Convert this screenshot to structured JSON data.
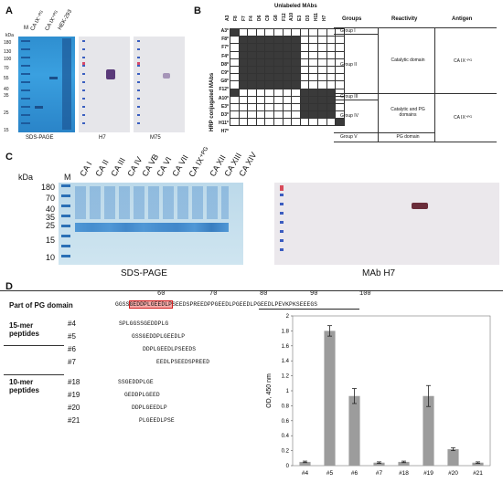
{
  "panels": {
    "A": "A",
    "B": "B",
    "C": "C",
    "D": "D"
  },
  "panelA": {
    "kda": "kDa",
    "m": "M",
    "lane_labels": [
      "CA IX⁻ᴾᴳ",
      "CA IX⁺ᴾᴳ",
      "HEK-293"
    ],
    "markers": [
      "180",
      "130",
      "100",
      "70",
      "55",
      "40",
      "35",
      "25",
      "15"
    ],
    "captions": [
      "SDS-PAGE",
      "H7",
      "M75"
    ]
  },
  "panelB": {
    "title": "Unlabeled MAbs",
    "columns": [
      "A3",
      "F8",
      "F7",
      "F4",
      "D6",
      "C9",
      "G8",
      "F12",
      "A10",
      "E3",
      "D3",
      "H11",
      "H7"
    ],
    "rows": [
      "A3*",
      "F8*",
      "F7*",
      "F4*",
      "D8*",
      "C9*",
      "G8*",
      "F12*",
      "A10*",
      "E3*",
      "D3*",
      "H11*",
      "H7*"
    ],
    "ylabel": "HRP conjugated MAbs",
    "headers": {
      "groups": "Groups",
      "reactivity": "Reactivity",
      "antigen": "Antigen"
    },
    "groups": [
      "Group I",
      "Group II",
      "Group III",
      "Group IV",
      "Group V"
    ],
    "reactivity": [
      "Catalytic domain",
      "Catalytic and PG domains",
      "PG domain"
    ],
    "antigen": [
      "CA IX⁻ᴾᴳ",
      "CA IX⁺ᴾᴳ"
    ]
  },
  "panelC": {
    "kda": "kDa",
    "m": "M",
    "lane_labels": [
      "CA I",
      "CA II",
      "CA III",
      "CA IV",
      "CA VB",
      "CA VI",
      "CA VII",
      "CA IX⁺ᴾᴳ",
      "CA XII",
      "CA XIII",
      "CA XIV"
    ],
    "markers": [
      "180",
      "70",
      "40",
      "35",
      "25",
      "15",
      "10"
    ],
    "captions": [
      "SDS-PAGE",
      "MAb H7"
    ]
  },
  "panelD": {
    "pg_label": "Part of PG domain",
    "ruler": [
      "60",
      "70",
      "80",
      "90",
      "100"
    ],
    "pg_sequence_prefix": "GGSS",
    "pg_sequence_highlight": "GEDDPLGEEDLP",
    "pg_sequence_suffix": "SEEDSPREEDPPGEEDLPGEEDLPGEEDLPEVKPKSEEEGS",
    "group1_label": "15-mer peptides",
    "group2_label": "10-mer peptides",
    "peptides": [
      {
        "id": "#4",
        "seq": "SPLGGSSGEDDPLG"
      },
      {
        "id": "#5",
        "seq": "GSSGEDDPLGEEDLP"
      },
      {
        "id": "#6",
        "seq": "DDPLGEEDLPSEEDS"
      },
      {
        "id": "#7",
        "seq": "EEDLPSEEDSPREED"
      },
      {
        "id": "#18",
        "seq": "SSGEDDPLGE"
      },
      {
        "id": "#19",
        "seq": "GEDDPLGEED"
      },
      {
        "id": "#20",
        "seq": "DDPLGEEDLP"
      },
      {
        "id": "#21",
        "seq": "PLGEEDLPSE"
      }
    ]
  },
  "chart_data": {
    "type": "bar",
    "categories": [
      "#4",
      "#5",
      "#6",
      "#7",
      "#18",
      "#19",
      "#20",
      "#21"
    ],
    "values": [
      0.05,
      1.8,
      0.93,
      0.04,
      0.05,
      0.93,
      0.22,
      0.04
    ],
    "errors": [
      0.01,
      0.07,
      0.1,
      0.01,
      0.01,
      0.14,
      0.02,
      0.01
    ],
    "ylabel": "OD, 450 nm",
    "ylim": [
      0,
      2.0
    ],
    "yticks": [
      "0",
      "0.2",
      "0.4",
      "0.6",
      "0.8",
      "1",
      "1.2",
      "1.4",
      "1.6",
      "1.8",
      "2"
    ],
    "grid": false
  }
}
